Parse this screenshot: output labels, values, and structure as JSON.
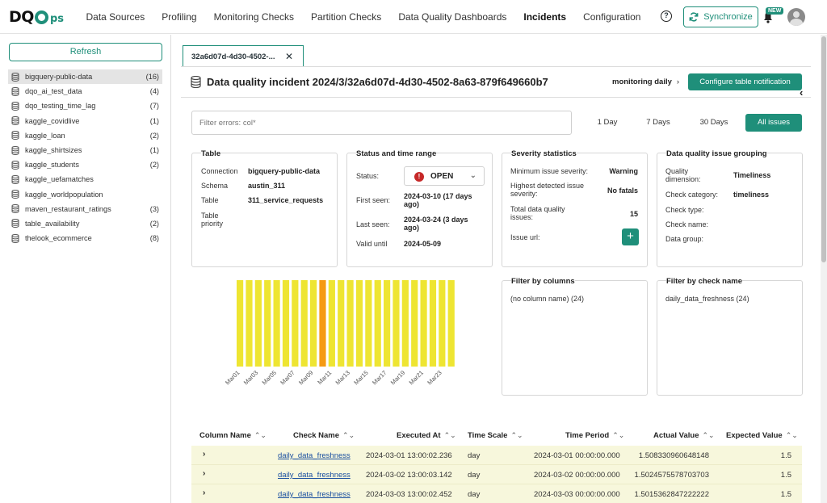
{
  "header": {
    "logo_main": "DQ",
    "logo_tail": "ps",
    "nav": [
      "Data Sources",
      "Profiling",
      "Monitoring Checks",
      "Partition Checks",
      "Data Quality Dashboards",
      "Incidents",
      "Configuration"
    ],
    "active_nav": "Incidents",
    "help_glyph": "?",
    "sync_label": "Synchronize",
    "new_badge": "NEW",
    "icons": {
      "help": "help-icon",
      "sync": "sync-icon",
      "bell": "bell-icon",
      "avatar": "user-avatar-icon"
    },
    "accent_color": "#1f8f7a"
  },
  "sidebar": {
    "refresh_label": "Refresh",
    "items": [
      {
        "name": "bigquery-public-data",
        "count": "(16)",
        "selected": true
      },
      {
        "name": "dqo_ai_test_data",
        "count": "(4)"
      },
      {
        "name": "dqo_testing_time_lag",
        "count": "(7)"
      },
      {
        "name": "kaggle_covidlive",
        "count": "(1)"
      },
      {
        "name": "kaggle_loan",
        "count": "(2)"
      },
      {
        "name": "kaggle_shirtsizes",
        "count": "(1)"
      },
      {
        "name": "kaggle_students",
        "count": "(2)"
      },
      {
        "name": "kaggle_uefamatches",
        "count": ""
      },
      {
        "name": "kaggle_worldpopulation",
        "count": ""
      },
      {
        "name": "maven_restaurant_ratings",
        "count": "(3)"
      },
      {
        "name": "table_availability",
        "count": "(2)"
      },
      {
        "name": "thelook_ecommerce",
        "count": "(8)"
      }
    ]
  },
  "tab": {
    "label": "32a6d07d-4d30-4502-...",
    "close": "✕"
  },
  "incident": {
    "title": "Data quality incident 2024/3/32a6d07d-4d30-4502-8a63-879f649660b7",
    "breadcrumb": "monitoring daily",
    "breadcrumb_chevron": "›",
    "configure_label": "Configure table notification",
    "collapse_glyph": "‹"
  },
  "filters": {
    "errors_placeholder": "Filter errors: col*",
    "ranges": [
      "1 Day",
      "7 Days",
      "30 Days",
      "All issues"
    ],
    "active_range": "All issues"
  },
  "table_card": {
    "title": "Table",
    "connection_label": "Connection",
    "connection": "bigquery-public-data",
    "schema_label": "Schema",
    "schema": "austin_311",
    "table_label": "Table",
    "table": "311_service_requests",
    "priority_label": "Table priority",
    "priority": ""
  },
  "status_card": {
    "title": "Status and time range",
    "status_label": "Status:",
    "status": "OPEN",
    "status_glyph": "!",
    "dropdown_glyph": "⌄",
    "first_seen_label": "First seen:",
    "first_seen": "2024-03-10 (17 days ago)",
    "last_seen_label": "Last seen:",
    "last_seen": "2024-03-24 (3 days ago)",
    "valid_until_label": "Valid until",
    "valid_until": "2024-05-09"
  },
  "severity_card": {
    "title": "Severity statistics",
    "min_label": "Minimum issue severity:",
    "min": "Warning",
    "max_label": "Highest detected issue severity:",
    "max": "No fatals",
    "total_label": "Total data quality issues:",
    "total": "15",
    "url_label": "Issue url:",
    "add_glyph": "+"
  },
  "grouping_card": {
    "title": "Data quality issue grouping",
    "dimension_label": "Quality dimension:",
    "dimension": "Timeliness",
    "category_label": "Check category:",
    "category": "timeliness",
    "type_label": "Check type:",
    "type": "",
    "name_label": "Check name:",
    "name": "",
    "group_label": "Data group:",
    "group": ""
  },
  "filter_columns": {
    "title": "Filter by columns",
    "entry": "(no column name)  (24)"
  },
  "filter_checks": {
    "title": "Filter by check name",
    "entry": "daily_data_freshness  (24)"
  },
  "chart_data": {
    "type": "bar",
    "categories": [
      "Mar01",
      "Mar02",
      "Mar03",
      "Mar04",
      "Mar05",
      "Mar06",
      "Mar07",
      "Mar08",
      "Mar09",
      "Mar10",
      "Mar11",
      "Mar12",
      "Mar13",
      "Mar14",
      "Mar15",
      "Mar16",
      "Mar17",
      "Mar18",
      "Mar19",
      "Mar20",
      "Mar21",
      "Mar22",
      "Mar23",
      "Mar24"
    ],
    "tick_labels": [
      "Mar01",
      "Mar03",
      "Mar05",
      "Mar07",
      "Mar09",
      "Mar11",
      "Mar13",
      "Mar15",
      "Mar17",
      "Mar19",
      "Mar21",
      "Mar23"
    ],
    "values": [
      1,
      1,
      1,
      1,
      1,
      1,
      1,
      1,
      1,
      1,
      1,
      1,
      1,
      1,
      1,
      1,
      1,
      1,
      1,
      1,
      1,
      1,
      1,
      1
    ],
    "highlight": "Mar10",
    "colors": {
      "bar": "#eee532",
      "highlight": "#f59a13"
    },
    "title": "",
    "xlabel": "",
    "ylabel": ""
  },
  "issues_table": {
    "headers": [
      "Column Name",
      "Check Name",
      "Executed At",
      "Time Scale",
      "Time Period",
      "Actual Value",
      "Expected Value"
    ],
    "sort_glyph": "⌃⌄",
    "expand_glyph": "›",
    "rows": [
      {
        "column": "",
        "check": "daily_data_freshness",
        "executed": "2024-03-01 13:00:02.236",
        "scale": "day",
        "period": "2024-03-01 00:00:00.000",
        "actual": "1.508330960648148",
        "expected": "1.5"
      },
      {
        "column": "",
        "check": "daily_data_freshness",
        "executed": "2024-03-02 13:00:03.142",
        "scale": "day",
        "period": "2024-03-02 00:00:00.000",
        "actual": "1.5024575578703703",
        "expected": "1.5"
      },
      {
        "column": "",
        "check": "daily_data_freshness",
        "executed": "2024-03-03 13:00:02.452",
        "scale": "day",
        "period": "2024-03-03 00:00:00.000",
        "actual": "1.5015362847222222",
        "expected": "1.5"
      }
    ]
  }
}
